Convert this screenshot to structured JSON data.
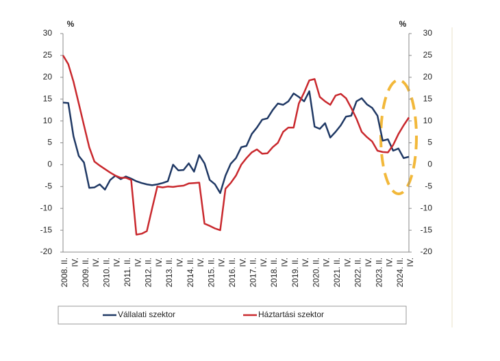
{
  "chart_data": {
    "type": "line",
    "y_unit": "%",
    "y2_unit": "%",
    "categories": [
      "2008. II.",
      null,
      "IV.",
      null,
      "2009. II.",
      null,
      "IV.",
      null,
      "2010. II.",
      null,
      "IV.",
      null,
      "2011. II.",
      null,
      "IV.",
      null,
      "2012. II.",
      null,
      "IV.",
      null,
      "2013. II.",
      null,
      "IV.",
      null,
      "2014. II.",
      null,
      "IV.",
      null,
      "2015. II.",
      null,
      "IV.",
      null,
      "2016. II.",
      null,
      "IV.",
      null,
      "2017. II.",
      null,
      "IV.",
      null,
      "2018. II.",
      null,
      "IV.",
      null,
      "2019. II.",
      null,
      "IV.",
      null,
      "2020. II.",
      null,
      "IV.",
      null,
      "2021. II.",
      null,
      "IV.",
      null,
      "2022. II.",
      null,
      "IV.",
      null,
      "2023. II.",
      null,
      "IV.",
      null,
      "2024. II.",
      null,
      "IV."
    ],
    "series": [
      {
        "name": "Vállalati szektor",
        "color": "#1f3864",
        "values": [
          14.2,
          14.1,
          6.5,
          2,
          0.5,
          -5.3,
          -5.2,
          -4.5,
          -5.7,
          -3.5,
          -2.5,
          -3.3,
          -2.7,
          -3.2,
          -3.8,
          -4.2,
          -4.5,
          -4.7,
          -4.5,
          -4.2,
          -3.8,
          0,
          -1.3,
          -1.2,
          0.3,
          -1.6,
          2.2,
          0.3,
          -3.5,
          -4.5,
          -6.5,
          -2.5,
          0.2,
          1.5,
          4,
          4.3,
          7,
          8.5,
          10.3,
          10.6,
          12.5,
          14,
          13.7,
          14.5,
          16.3,
          15.5,
          14.5,
          16.8,
          8.7,
          8.2,
          9.5,
          6.2,
          7.5,
          9,
          11,
          11.2,
          14.5,
          15.2,
          13.8,
          13,
          11.2,
          5.5,
          5.8,
          3.2,
          3.7,
          1.5,
          1.8
        ]
      },
      {
        "name": "Háztartási szektor",
        "color": "#c9282d",
        "values": [
          25,
          23,
          19,
          14,
          9,
          4,
          0.7,
          -0.2,
          -1,
          -1.8,
          -2.5,
          -3,
          -3,
          -3.5,
          -16,
          -15.8,
          -15.2,
          -10,
          -5,
          -5.2,
          -5,
          -5.1,
          -4.9,
          -4.8,
          -4.3,
          -4.2,
          -4.1,
          -13.5,
          -14,
          -14.6,
          -15,
          -5.5,
          -4.2,
          -2.5,
          0,
          1.5,
          2.8,
          3.5,
          2.5,
          2.6,
          4,
          5,
          7.5,
          8.5,
          8.5,
          14,
          16.5,
          19.3,
          19.6,
          15.5,
          14.5,
          13.7,
          15.8,
          16.2,
          15.2,
          13,
          10.5,
          7.5,
          6.3,
          5.3,
          3.2,
          2.9,
          2.8,
          4.5,
          7,
          9,
          10.8
        ]
      }
    ],
    "ylim": [
      -20,
      30
    ],
    "yticks": [
      30,
      25,
      20,
      15,
      10,
      5,
      0,
      -5,
      -10,
      -15,
      -20
    ],
    "y2lim": [
      -20,
      30
    ],
    "y2ticks": [
      30,
      25,
      20,
      15,
      10,
      5,
      0,
      -5,
      -10,
      -15,
      -20
    ],
    "legend": "bottom"
  }
}
